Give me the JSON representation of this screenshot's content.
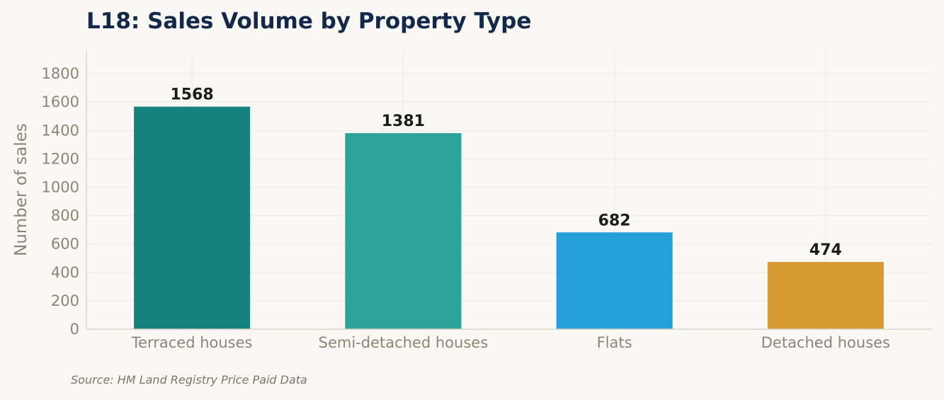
{
  "title": "L18: Sales Volume by Property Type",
  "source": "Source: HM Land Registry Price Paid Data",
  "chart_data": {
    "type": "bar",
    "title": "L18: Sales Volume by Property Type",
    "xlabel": "",
    "ylabel": "Number of sales",
    "categories": [
      "Terraced houses",
      "Semi-detached houses",
      "Flats",
      "Detached houses"
    ],
    "values": [
      1568,
      1381,
      682,
      474
    ],
    "data_labels": [
      "1568",
      "1381",
      "682",
      "474"
    ],
    "colors": [
      "#178180",
      "#2ba39b",
      "#249fd9",
      "#d79a33"
    ],
    "ylim": [
      0,
      1960
    ],
    "yticks": [
      0,
      200,
      400,
      600,
      800,
      1000,
      1200,
      1400,
      1600,
      1800
    ],
    "grid": true,
    "legend": "none"
  }
}
